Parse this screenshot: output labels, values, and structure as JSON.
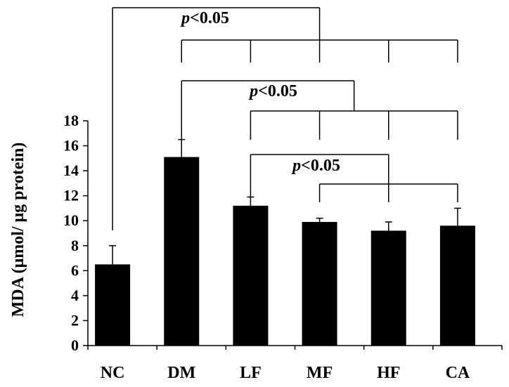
{
  "chart_data": {
    "type": "bar",
    "ylabel": "MDA (μmol/ μg protein)",
    "ylim": [
      0,
      18
    ],
    "yticks": [
      0,
      2,
      4,
      6,
      8,
      10,
      12,
      14,
      16,
      18
    ],
    "categories": [
      "NC",
      "DM",
      "LF",
      "MF",
      "HF",
      "CA"
    ],
    "values": [
      6.5,
      15.1,
      11.2,
      9.9,
      9.2,
      9.6
    ],
    "errors": [
      1.5,
      1.4,
      0.7,
      0.3,
      0.7,
      1.4
    ],
    "bar_color": "#000000",
    "significance": [
      {
        "p_symbol": "p",
        "p_rest": "<0.05",
        "from": "NC",
        "to": [
          "DM",
          "LF",
          "MF",
          "HF",
          "CA"
        ]
      },
      {
        "p_symbol": "p",
        "p_rest": "<0.05",
        "from": "DM",
        "to": [
          "LF",
          "MF",
          "HF",
          "CA"
        ]
      },
      {
        "p_symbol": "p",
        "p_rest": "<0.05",
        "from": "LF",
        "to": [
          "MF",
          "HF",
          "CA"
        ]
      }
    ]
  }
}
